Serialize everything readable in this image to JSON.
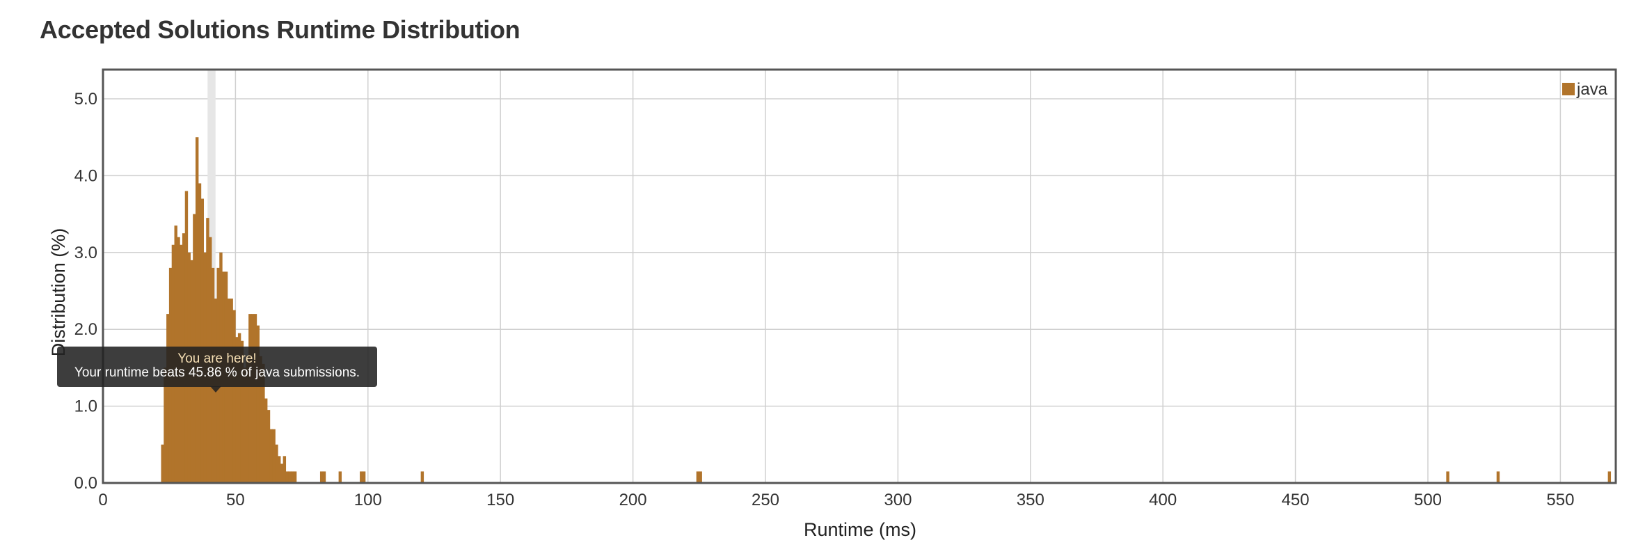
{
  "chart_data": {
    "type": "bar",
    "title": "Accepted Solutions Runtime Distribution",
    "xlabel": "Runtime (ms)",
    "ylabel": "Distribution (%)",
    "xlim": [
      0,
      570
    ],
    "ylim": [
      0,
      5.4
    ],
    "x_ticks": [
      "0",
      "50",
      "100",
      "150",
      "200",
      "250",
      "300",
      "350",
      "400",
      "450",
      "500",
      "550"
    ],
    "y_ticks": [
      "0.0",
      "1.0",
      "2.0",
      "3.0",
      "4.0",
      "5.0"
    ],
    "grid": true,
    "legend_position": "top-right",
    "highlight_x": 40,
    "series": [
      {
        "name": "java",
        "color": "#b1742b",
        "bin_width": 1,
        "x": [
          22,
          23,
          24,
          25,
          26,
          27,
          28,
          29,
          30,
          31,
          32,
          33,
          34,
          35,
          36,
          37,
          38,
          39,
          40,
          41,
          42,
          43,
          44,
          45,
          46,
          47,
          48,
          49,
          50,
          51,
          52,
          53,
          54,
          55,
          56,
          57,
          58,
          59,
          60,
          61,
          62,
          63,
          64,
          65,
          66,
          67,
          68,
          69,
          70,
          71,
          72,
          82,
          83,
          89,
          97,
          98,
          120,
          224,
          225,
          507,
          526,
          568
        ],
        "values": [
          0.5,
          1.5,
          2.2,
          2.8,
          3.1,
          3.35,
          3.2,
          3.1,
          3.25,
          3.8,
          3.0,
          2.9,
          3.5,
          4.5,
          3.9,
          3.7,
          3.0,
          3.45,
          3.2,
          2.8,
          2.4,
          2.8,
          3.0,
          2.75,
          2.75,
          2.4,
          2.4,
          2.25,
          1.9,
          1.95,
          1.85,
          1.5,
          1.65,
          2.2,
          2.2,
          2.2,
          2.05,
          1.65,
          1.55,
          1.1,
          0.95,
          0.7,
          0.7,
          0.5,
          0.35,
          0.25,
          0.35,
          0.15,
          0.15,
          0.15,
          0.15,
          0.15,
          0.15,
          0.15,
          0.15,
          0.15,
          0.15,
          0.15,
          0.15,
          0.15,
          0.15,
          0.15
        ]
      }
    ]
  },
  "tooltip": {
    "heading": "You are here!",
    "body": "Your runtime beats 45.86 % of java submissions."
  }
}
